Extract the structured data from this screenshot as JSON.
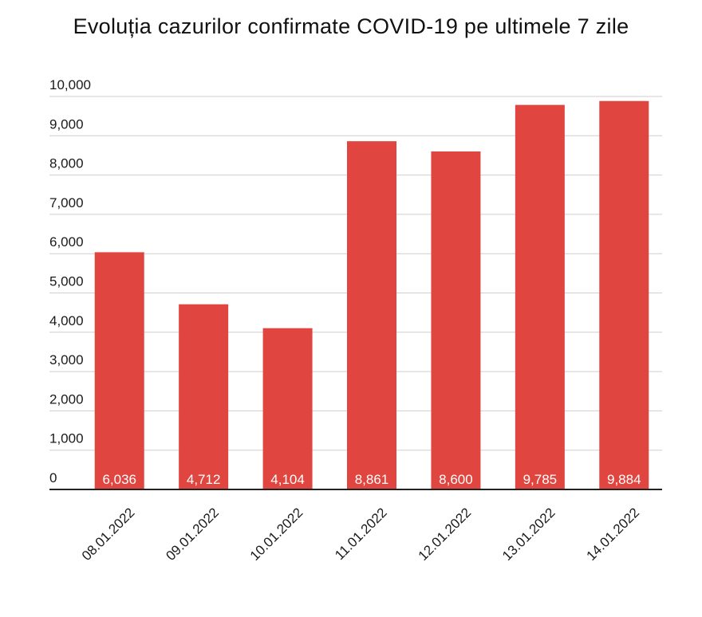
{
  "chart_data": {
    "type": "bar",
    "title": "Evoluția cazurilor confirmate COVID-19 pe ultimele 7 zile",
    "categories": [
      "08.01.2022",
      "09.01.2022",
      "10.01.2022",
      "11.01.2022",
      "12.01.2022",
      "13.01.2022",
      "14.01.2022"
    ],
    "values": [
      6036,
      4712,
      4104,
      8861,
      8600,
      9785,
      9884
    ],
    "data_labels": [
      "6,036",
      "4,712",
      "4,104",
      "8,861",
      "8,600",
      "9,785",
      "9,884"
    ],
    "y_ticks": [
      "0",
      "1,000",
      "2,000",
      "3,000",
      "4,000",
      "5,000",
      "6,000",
      "7,000",
      "8,000",
      "9,000",
      "10,000"
    ],
    "ylim": [
      0,
      10000
    ],
    "xlabel": "",
    "ylabel": "",
    "grid": true,
    "bar_color": "#e0463f"
  }
}
